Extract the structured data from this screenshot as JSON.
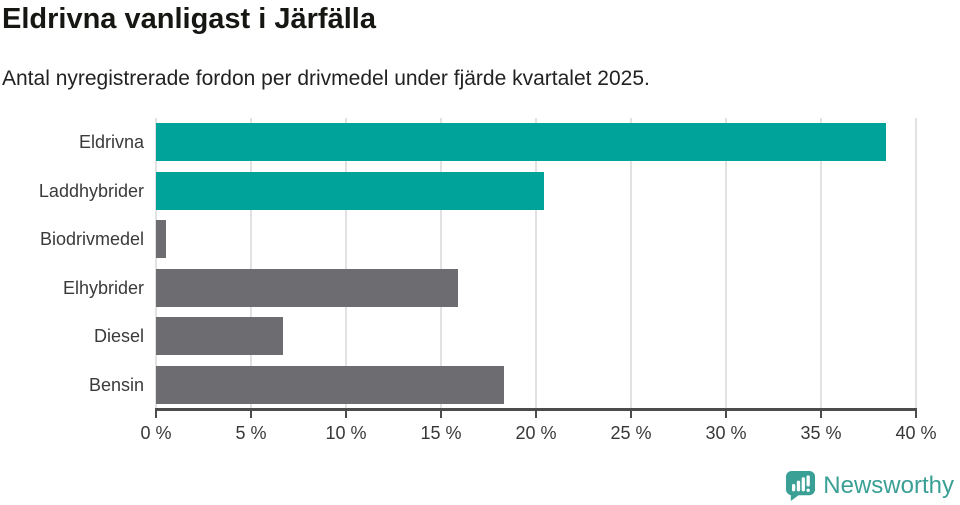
{
  "chart_data": {
    "type": "bar",
    "orientation": "horizontal",
    "title": "Eldrivna vanligast i Järfälla",
    "subtitle": "Antal nyregistrerade fordon per drivmedel under fjärde kvartalet 2025.",
    "categories": [
      "Eldrivna",
      "Laddhybrider",
      "Biodrivmedel",
      "Elhybrider",
      "Diesel",
      "Bensin"
    ],
    "values": [
      38.4,
      20.4,
      0.5,
      15.9,
      6.7,
      18.3
    ],
    "bar_colors": [
      "#00a39a",
      "#00a39a",
      "#6d6c71",
      "#6d6c71",
      "#6d6c71",
      "#6d6c71"
    ],
    "highlight_color": "#00a39a",
    "default_bar_color": "#6d6c71",
    "xlabel": "",
    "ylabel": "",
    "xlim": [
      0,
      40
    ],
    "x_tick_step": 5,
    "x_tick_labels": [
      "0 %",
      "5 %",
      "10 %",
      "15 %",
      "20 %",
      "25 %",
      "30 %",
      "35 %",
      "40 %"
    ],
    "grid": "vertical",
    "gridline_color": "#e2e2e2",
    "axis_color": "#4c4c4c"
  },
  "footer": {
    "logo_text": "Newsworthy",
    "logo_color": "#3aa096",
    "logo_icon": "newsworthy-speech-bubble-bar-chart-icon"
  }
}
